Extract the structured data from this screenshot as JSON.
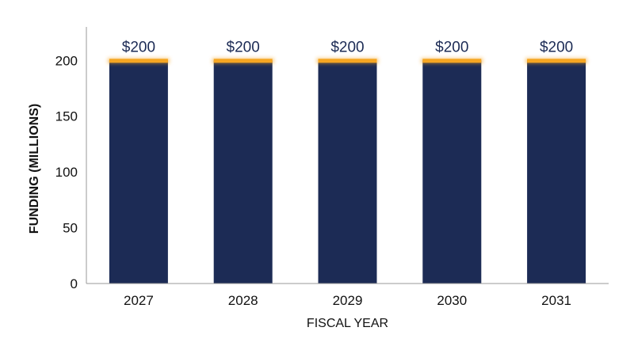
{
  "chart_data": {
    "type": "bar",
    "categories": [
      "2027",
      "2028",
      "2029",
      "2030",
      "2031"
    ],
    "values": [
      200,
      200,
      200,
      200,
      200
    ],
    "data_labels": [
      "$200",
      "$200",
      "$200",
      "$200",
      "$200"
    ],
    "title": "",
    "xlabel": "FISCAL YEAR",
    "ylabel": "FUNDING (MILLIONS)",
    "ylim": [
      0,
      230
    ],
    "yticks": [
      0,
      50,
      100,
      150,
      200
    ],
    "grid": false,
    "legend": "none",
    "colors": {
      "bar": "#1c2b55",
      "bar_top_highlight": "#f5a623",
      "axis": "#999999",
      "text": "#111111",
      "data_label": "#1c2b55"
    }
  }
}
